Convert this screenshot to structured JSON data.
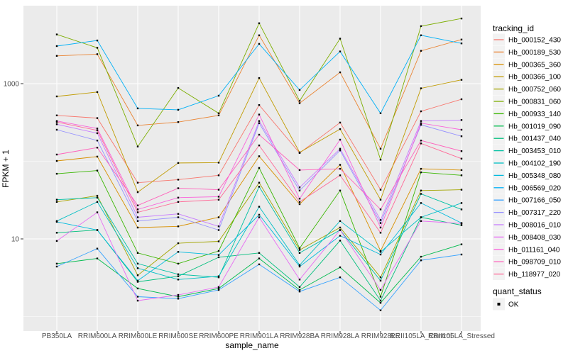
{
  "chart_data": {
    "type": "line",
    "title": "",
    "xlabel": "sample_name",
    "ylabel": "FPKM + 1",
    "y_scale": "log10",
    "ylim": [
      0.65,
      9000
    ],
    "grid": "on",
    "legend_position": "right",
    "y_ticks": [
      {
        "label": "1000",
        "value": 1000
      },
      {
        "label": "10",
        "value": 10
      }
    ],
    "y_minor_gridlines": [
      1,
      100
    ],
    "categories": [
      "PB350LA",
      "RRIM600LA",
      "RRIM600LE",
      "RRIM600SE",
      "RRIM600PE",
      "RRIM901LA",
      "RRIM928BA",
      "RRIM928LA",
      "RRIM928LE",
      "RRII105LA_Control",
      "RRII105LA_Stressed"
    ],
    "series": [
      {
        "name": "Hb_000152_430",
        "color": "#F8766D",
        "values": [
          390,
          360,
          53,
          58,
          66,
          530,
          128,
          315,
          43,
          440,
          630
        ]
      },
      {
        "name": "Hb_000189_530",
        "color": "#EA8331",
        "values": [
          2280,
          2400,
          290,
          320,
          390,
          4200,
          560,
          1400,
          145,
          2650,
          3700
        ]
      },
      {
        "name": "Hb_000365_360",
        "color": "#D89000",
        "values": [
          101,
          115,
          14,
          14.5,
          19,
          116,
          28,
          90,
          7,
          80,
          77
        ]
      },
      {
        "name": "Hb_000366_100",
        "color": "#C09B00",
        "values": [
          685,
          780,
          40,
          95,
          96,
          1180,
          130,
          260,
          32,
          870,
          1120
        ]
      },
      {
        "name": "Hb_000752_060",
        "color": "#A3A500",
        "values": [
          30,
          36,
          3.4,
          8.8,
          9.3,
          53,
          7.2,
          14,
          3.2,
          42,
          43
        ]
      },
      {
        "name": "Hb_000831_060",
        "color": "#7CAE00",
        "values": [
          4300,
          2900,
          155,
          880,
          415,
          6000,
          600,
          3800,
          105,
          5500,
          6900
        ]
      },
      {
        "name": "Hb_000933_140",
        "color": "#39B600",
        "values": [
          69,
          76,
          6.6,
          4.8,
          7,
          82,
          7.6,
          42,
          1.8,
          72,
          66
        ]
      },
      {
        "name": "Hb_001019_090",
        "color": "#00BB4E",
        "values": [
          4.8,
          5.6,
          2.3,
          1.8,
          2.3,
          5.6,
          2.2,
          4.3,
          1.5,
          5.9,
          8.5
        ]
      },
      {
        "name": "Hb_001437_040",
        "color": "#00BF7D",
        "values": [
          12,
          13,
          2.8,
          3.3,
          5.8,
          6.6,
          2.4,
          9.5,
          1.6,
          19,
          15
        ]
      },
      {
        "name": "Hb_003453_010",
        "color": "#00C1A3",
        "values": [
          32,
          34,
          4.8,
          3.5,
          3.2,
          47,
          6.6,
          13,
          2.9,
          38,
          24
        ]
      },
      {
        "name": "Hb_004102_190",
        "color": "#00BFC4",
        "values": [
          17,
          30,
          4.2,
          3,
          3.3,
          26,
          4.6,
          17,
          6.8,
          19,
          29
        ]
      },
      {
        "name": "Hb_005348_080",
        "color": "#00BADE",
        "values": [
          16.6,
          13,
          2.9,
          6.8,
          6.2,
          20.5,
          4.4,
          11,
          6.3,
          29,
          16
        ]
      },
      {
        "name": "Hb_006569_020",
        "color": "#00B0F6",
        "values": [
          3050,
          3600,
          480,
          460,
          700,
          3250,
          830,
          2600,
          415,
          4200,
          3300
        ]
      },
      {
        "name": "Hb_007166_050",
        "color": "#35A2FF",
        "values": [
          4.4,
          7.5,
          1.8,
          1.7,
          2.2,
          4.7,
          2.1,
          3.2,
          1.2,
          5.3,
          6.3
        ]
      },
      {
        "name": "Hb_007317_220",
        "color": "#9590FF",
        "values": [
          255,
          185,
          17,
          19,
          13,
          310,
          42,
          138,
          16,
          295,
          210
        ]
      },
      {
        "name": "Hb_008016_010",
        "color": "#C77CFF",
        "values": [
          300,
          230,
          19,
          21,
          14.5,
          330,
          46,
          145,
          17.5,
          330,
          340
        ]
      },
      {
        "name": "Hb_008408_030",
        "color": "#E76BF3",
        "values": [
          9.4,
          22,
          1.6,
          1.9,
          2.4,
          19,
          3,
          13,
          2.2,
          17,
          15.8
        ]
      },
      {
        "name": "Hb_011161_040",
        "color": "#FA62DB",
        "values": [
          330,
          265,
          24,
          34,
          35,
          400,
          33,
          190,
          14,
          310,
          255
        ]
      },
      {
        "name": "Hb_098709_010",
        "color": "#FF62BC",
        "values": [
          122,
          150,
          27,
          45,
          43,
          220,
          77,
          80,
          24,
          185,
          135
        ]
      },
      {
        "name": "Hb_118977_020",
        "color": "#FF6A98",
        "values": [
          320,
          250,
          22,
          30,
          32,
          160,
          30,
          66,
          12,
          170,
          108
        ]
      }
    ],
    "legend": {
      "tracking_title": "tracking_id",
      "quant_title": "quant_status",
      "quant_label": "OK"
    },
    "colors": {
      "panel_bg": "#EBEBEB",
      "gridline": "#FFFFFF",
      "point": "#000000",
      "tick_mark": "#333333",
      "tick_text": "#4D4D4D",
      "legend_key_bg": "#F2F2F2",
      "page_bg": "#FFFFFF"
    }
  }
}
